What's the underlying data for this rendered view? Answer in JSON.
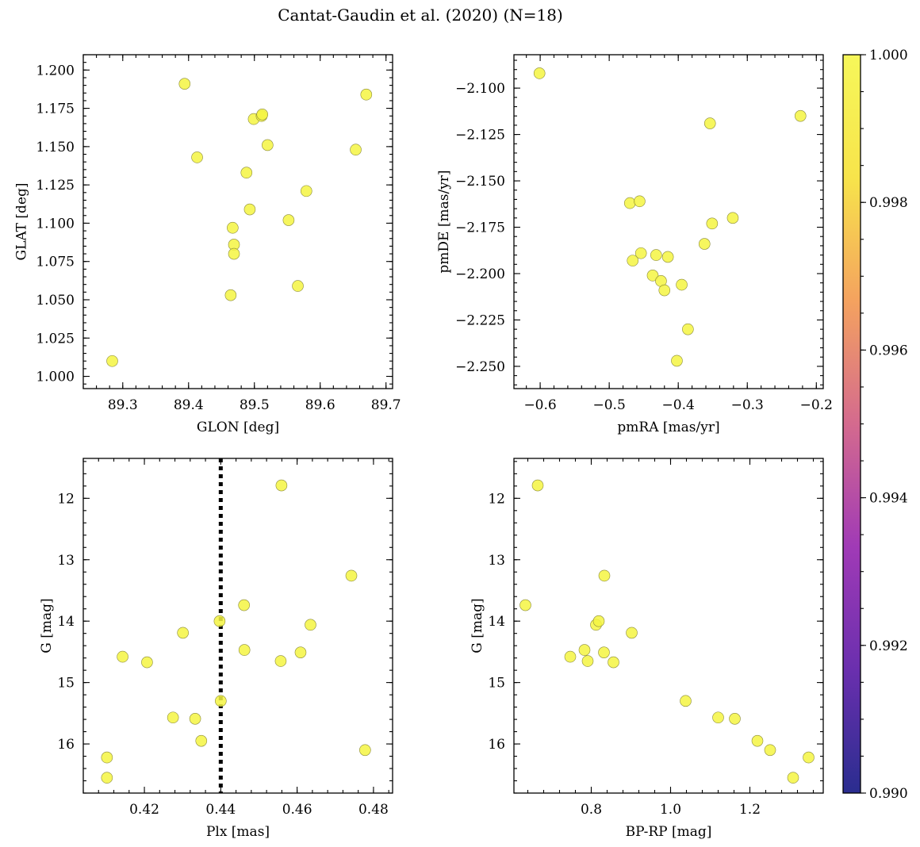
{
  "chart_data": {
    "title": "Cantat-Gaudin et al. (2020) (N=18)",
    "type": "scatter",
    "panels": [
      {
        "id": "glon-glat",
        "xlabel": "GLON [deg]",
        "ylabel": "GLAT [deg]",
        "xlim": [
          89.24,
          89.71
        ],
        "ylim": [
          0.992,
          1.21
        ],
        "y_inverted": false,
        "xticks": [
          89.3,
          89.4,
          89.5,
          89.6,
          89.7
        ],
        "xticklabels": [
          "89.3",
          "89.4",
          "89.5",
          "89.6",
          "89.7"
        ],
        "yticks": [
          1.0,
          1.025,
          1.05,
          1.075,
          1.1,
          1.125,
          1.15,
          1.175,
          1.2
        ],
        "yticklabels": [
          "1.000",
          "1.025",
          "1.050",
          "1.075",
          "1.100",
          "1.125",
          "1.150",
          "1.175",
          "1.200"
        ],
        "x": [
          89.284,
          89.394,
          89.413,
          89.464,
          89.467,
          89.469,
          89.469,
          89.488,
          89.493,
          89.499,
          89.511,
          89.512,
          89.52,
          89.552,
          89.566,
          89.579,
          89.654,
          89.67
        ],
        "y": [
          1.01,
          1.191,
          1.143,
          1.053,
          1.097,
          1.086,
          1.08,
          1.133,
          1.109,
          1.168,
          1.17,
          1.171,
          1.151,
          1.102,
          1.059,
          1.121,
          1.148,
          1.184
        ]
      },
      {
        "id": "pmra-pmde",
        "xlabel": "pmRA [mas/yr]",
        "ylabel": "pmDE [mas/yr]",
        "xlim": [
          -0.638,
          -0.19
        ],
        "ylim": [
          -2.262,
          -2.082
        ],
        "y_inverted": false,
        "xticks": [
          -0.6,
          -0.5,
          -0.4,
          -0.3,
          -0.2
        ],
        "xticklabels": [
          "−0.6",
          "−0.5",
          "−0.4",
          "−0.3",
          "−0.2"
        ],
        "yticks": [
          -2.25,
          -2.225,
          -2.2,
          -2.175,
          -2.15,
          -2.125,
          -2.1
        ],
        "yticklabels": [
          "−2.250",
          "−2.225",
          "−2.200",
          "−2.175",
          "−2.150",
          "−2.125",
          "−2.100"
        ],
        "x": [
          -0.601,
          -0.47,
          -0.466,
          -0.456,
          -0.454,
          -0.437,
          -0.432,
          -0.425,
          -0.42,
          -0.415,
          -0.402,
          -0.395,
          -0.386,
          -0.362,
          -0.354,
          -0.351,
          -0.321,
          -0.223
        ],
        "y": [
          -2.092,
          -2.162,
          -2.193,
          -2.161,
          -2.189,
          -2.201,
          -2.19,
          -2.204,
          -2.209,
          -2.191,
          -2.247,
          -2.206,
          -2.23,
          -2.184,
          -2.119,
          -2.173,
          -2.17,
          -2.115
        ]
      },
      {
        "id": "plx-g",
        "xlabel": "Plx [mas]",
        "ylabel": "G [mag]",
        "xlim": [
          0.404,
          0.485
        ],
        "ylim": [
          11.35,
          16.8
        ],
        "y_inverted": true,
        "xticks": [
          0.42,
          0.44,
          0.46,
          0.48
        ],
        "xticklabels": [
          "0.42",
          "0.44",
          "0.46",
          "0.48"
        ],
        "yticks": [
          12,
          13,
          14,
          15,
          16
        ],
        "yticklabels": [
          "12",
          "13",
          "14",
          "15",
          "16"
        ],
        "vline_x": 0.44,
        "x": [
          0.4102,
          0.4102,
          0.4143,
          0.4207,
          0.4275,
          0.4301,
          0.4333,
          0.4349,
          0.4397,
          0.44,
          0.4461,
          0.4462,
          0.4557,
          0.4559,
          0.4609,
          0.4635,
          0.4742,
          0.4778
        ],
        "y": [
          16.22,
          16.55,
          14.58,
          14.67,
          15.57,
          14.19,
          15.59,
          15.95,
          14.0,
          15.3,
          13.74,
          14.47,
          14.65,
          11.79,
          14.51,
          14.06,
          13.26,
          16.1
        ]
      },
      {
        "id": "bprp-g",
        "xlabel": "BP-RP [mag]",
        "ylabel": "G [mag]",
        "xlim": [
          0.605,
          1.385
        ],
        "ylim": [
          11.35,
          16.8
        ],
        "y_inverted": true,
        "xticks": [
          0.8,
          1.0,
          1.2
        ],
        "xticklabels": [
          "0.8",
          "1.0",
          "1.2"
        ],
        "yticks": [
          12,
          13,
          14,
          15,
          16
        ],
        "yticklabels": [
          "12",
          "13",
          "14",
          "15",
          "16"
        ],
        "x": [
          0.634,
          0.665,
          0.747,
          0.783,
          0.791,
          0.812,
          0.819,
          0.832,
          0.833,
          0.856,
          0.902,
          1.038,
          1.12,
          1.162,
          1.219,
          1.251,
          1.309,
          1.348
        ],
        "y": [
          13.74,
          11.79,
          14.58,
          14.47,
          14.65,
          14.06,
          14.0,
          14.51,
          13.26,
          14.67,
          14.19,
          15.3,
          15.57,
          15.59,
          15.95,
          16.1,
          16.55,
          16.22
        ]
      }
    ],
    "colorbar": {
      "label": "",
      "colormap": "plasma",
      "range": [
        0.99,
        1.0
      ],
      "ticks": [
        0.99,
        0.992,
        0.994,
        0.996,
        0.998,
        1.0
      ],
      "ticklabels": [
        "0.990",
        "0.992",
        "0.994",
        "0.996",
        "0.998",
        "1.000"
      ],
      "colors": [
        "#2a2d8f",
        "#6a2fae",
        "#a03ab6",
        "#d46a8e",
        "#f4a25f",
        "#f7e44b",
        "#f6f75a"
      ]
    },
    "point_color": "#f5f542"
  }
}
